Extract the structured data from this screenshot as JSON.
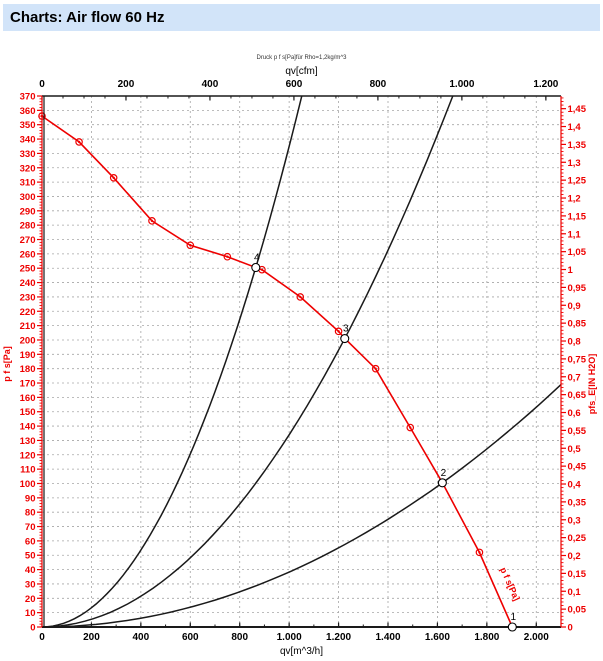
{
  "title": "Charts: Air flow 60 Hz",
  "colors": {
    "accent_red": "#ee0000",
    "curve_black": "#1a1a1a",
    "grid_gray": "#a6a6a6",
    "titlebar_bg": "#d2e4f9",
    "note_gray": "#333333"
  },
  "chart_data": {
    "type": "line",
    "title_note": "Druck p f s[Pa]für Rho=1,2kg/m^3",
    "curve_end_label": "p f s[Pa]",
    "axes": {
      "bottom": {
        "label": "qv[m^3/h]",
        "unit": "m^3/h",
        "range": [
          0,
          2100
        ],
        "tick_values": [
          0,
          200,
          400,
          600,
          800,
          1000,
          1200,
          1400,
          1600,
          1800,
          2000
        ],
        "tick_labels": [
          "0",
          "200",
          "400",
          "600",
          "800",
          "1.000",
          "1.200",
          "1.400",
          "1.600",
          "1.800",
          "2.000"
        ]
      },
      "top": {
        "label": "qv[cfm]",
        "unit": "cfm",
        "range": [
          0,
          1236
        ],
        "tick_values": [
          0,
          200,
          400,
          600,
          800,
          1000,
          1200
        ],
        "tick_labels": [
          "0",
          "200",
          "400",
          "600",
          "800",
          "1.000",
          "1.200"
        ]
      },
      "left": {
        "label": "p f s[Pa]",
        "unit": "Pa",
        "range": [
          0,
          370
        ],
        "tick_values": [
          0,
          10,
          20,
          30,
          40,
          50,
          60,
          70,
          80,
          90,
          100,
          110,
          120,
          130,
          140,
          150,
          160,
          170,
          180,
          190,
          200,
          210,
          220,
          230,
          240,
          250,
          260,
          270,
          280,
          290,
          300,
          310,
          320,
          330,
          340,
          350,
          360,
          370
        ],
        "tick_labels": [
          "0",
          "10",
          "20",
          "30",
          "40",
          "50",
          "60",
          "70",
          "80",
          "90",
          "100",
          "110",
          "120",
          "130",
          "140",
          "150",
          "160",
          "170",
          "180",
          "190",
          "200",
          "210",
          "220",
          "230",
          "240",
          "250",
          "260",
          "270",
          "280",
          "290",
          "300",
          "310",
          "320",
          "330",
          "340",
          "350",
          "360",
          "370"
        ]
      },
      "right": {
        "label": "pfs_E[IN H2O]",
        "unit": "IN H2O",
        "range": [
          0,
          1.49
        ],
        "tick_values": [
          0,
          0.05,
          0.1,
          0.15,
          0.2,
          0.25,
          0.3,
          0.35,
          0.4,
          0.45,
          0.5,
          0.55,
          0.6,
          0.65,
          0.7,
          0.75,
          0.8,
          0.85,
          0.9,
          0.95,
          1,
          1.05,
          1.1,
          1.15,
          1.2,
          1.25,
          1.3,
          1.35,
          1.4,
          1.45
        ],
        "tick_labels": [
          "0",
          "0,05",
          "0,1",
          "0,15",
          "0,2",
          "0,25",
          "0,3",
          "0,35",
          "0,4",
          "0,45",
          "0,5",
          "0,55",
          "0,6",
          "0,65",
          "0,7",
          "0,75",
          "0,8",
          "0,85",
          "0,9",
          "0,95",
          "1",
          "1,05",
          "1,1",
          "1,15",
          "1,2",
          "1,25",
          "1,3",
          "1,35",
          "1,4",
          "1,45"
        ],
        "grid": false
      }
    },
    "grid": {
      "vertical_step": 200,
      "horizontal_step": 10,
      "style": "dashed"
    },
    "series": [
      {
        "name": "fan-pressure-curve",
        "color": "#ee0000",
        "points": [
          [
            0,
            356
          ],
          [
            150,
            338
          ],
          [
            290,
            313
          ],
          [
            445,
            283
          ],
          [
            600,
            266
          ],
          [
            750,
            258
          ],
          [
            865,
            250.5
          ],
          [
            890,
            249
          ],
          [
            1045,
            230
          ],
          [
            1200,
            206
          ],
          [
            1225,
            201
          ],
          [
            1350,
            180
          ],
          [
            1490,
            139
          ],
          [
            1620,
            100.5
          ],
          [
            1770,
            52
          ],
          [
            1903,
            0
          ]
        ],
        "marker_points": [
          [
            0,
            356
          ],
          [
            150,
            338
          ],
          [
            290,
            313
          ],
          [
            445,
            283
          ],
          [
            600,
            266
          ],
          [
            750,
            258
          ],
          [
            890,
            249
          ],
          [
            1045,
            230
          ],
          [
            1200,
            206
          ],
          [
            1350,
            180
          ],
          [
            1490,
            139
          ],
          [
            1770,
            52
          ]
        ]
      }
    ],
    "system_curves": [
      {
        "name": "system-curve-through-4",
        "q_ref": 865,
        "p_ref": 250.5,
        "q_end": 1051
      },
      {
        "name": "system-curve-through-3",
        "q_ref": 1225,
        "p_ref": 201,
        "q_end": 1662
      },
      {
        "name": "system-curve-through-2",
        "q_ref": 1620,
        "p_ref": 100.5,
        "q_end": 2100
      }
    ],
    "operating_points": [
      {
        "label": "1",
        "q": 1903,
        "p": 0
      },
      {
        "label": "2",
        "q": 1620,
        "p": 100.5
      },
      {
        "label": "3",
        "q": 1225,
        "p": 201
      },
      {
        "label": "4",
        "q": 865,
        "p": 250.5
      }
    ]
  }
}
